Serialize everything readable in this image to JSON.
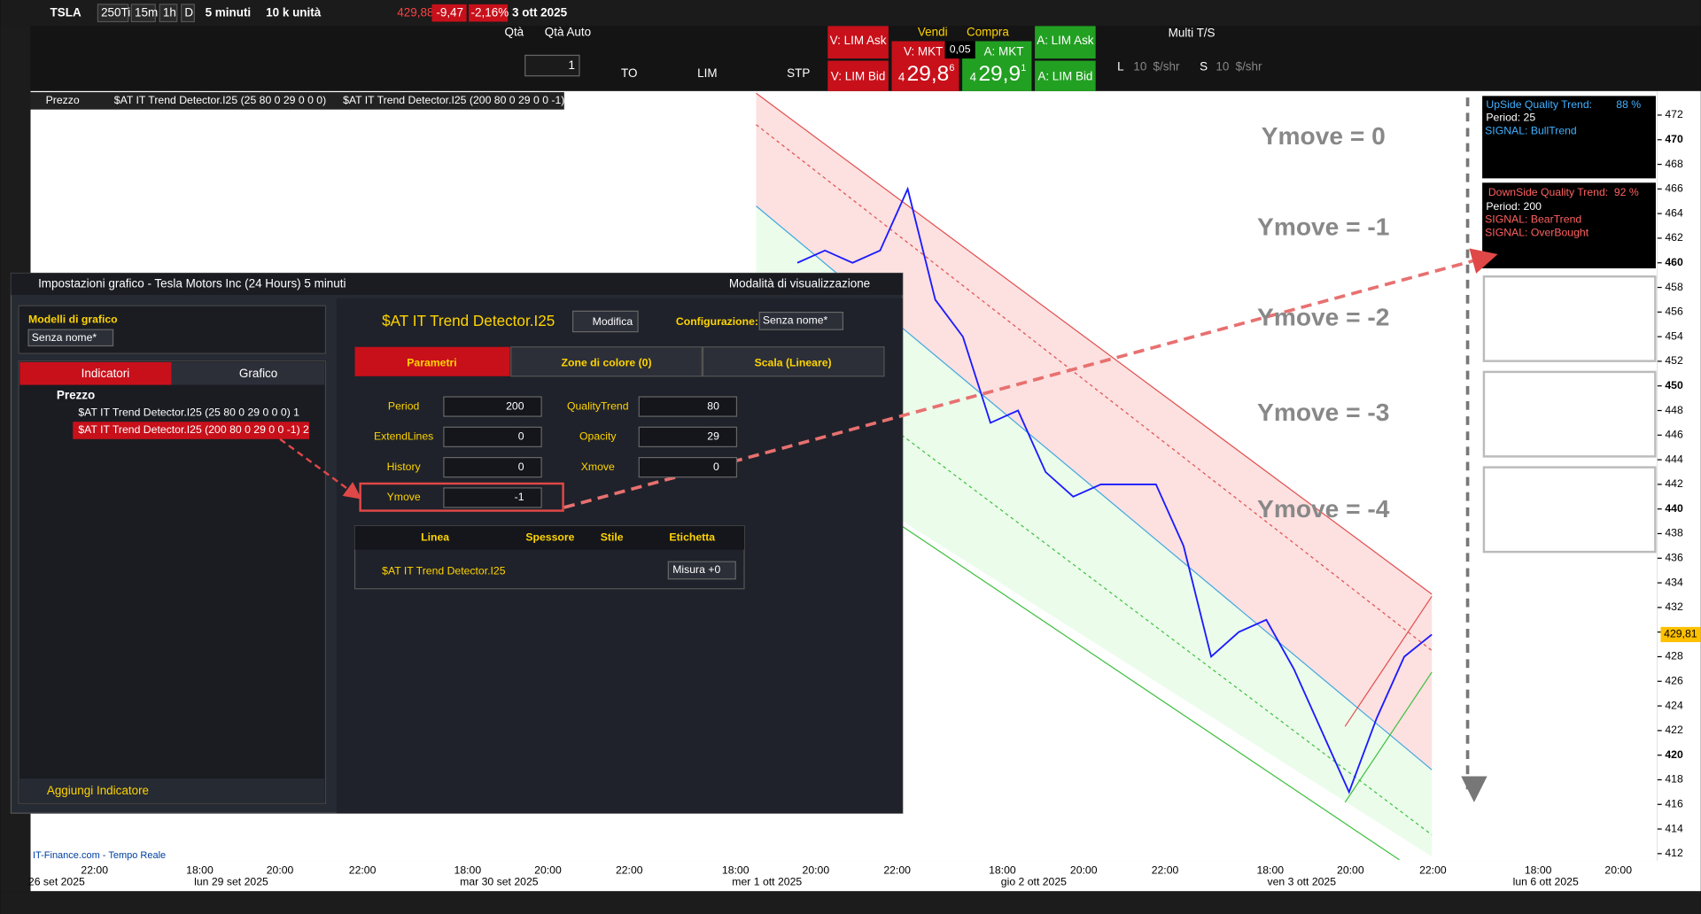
{
  "toolbar": {
    "symbol": "TSLA",
    "buttons": [
      "250Ti",
      "15m",
      "1h",
      "D"
    ],
    "interval": "5 minuti",
    "units": "10 k unità",
    "last": "429,88",
    "change": "-9,47",
    "change_pct": "-2,16%",
    "date": "3 ott 2025",
    "qta": "Qtà",
    "qta_auto": "Qtà Auto",
    "qty_value": "1",
    "to": "TO",
    "lim": "LIM",
    "stp": "STP",
    "v_lim_ask": "V: LIM Ask",
    "v_lim_bid": "V: LIM Bid",
    "vendi": "Vendi",
    "compra": "Compra",
    "v_mkt": "V: MKT",
    "a_mkt": "A: MKT",
    "spread": "0,05",
    "bid_small": "4",
    "bid_big": "29,8",
    "bid_sup": "6",
    "ask_small": "4",
    "ask_big": "29,9",
    "ask_sup": "1",
    "a_lim_ask": "A: LIM Ask",
    "a_lim_bid": "A: LIM Bid",
    "multi": "Multi T/S",
    "l": "L",
    "s": "S",
    "l_qty": "10",
    "s_qty": "10",
    "shr": "$/shr"
  },
  "legend": [
    "Prezzo",
    "$AT IT Trend Detector.I25 (25 80 0 29 0 0 0)",
    "$AT IT Trend Detector.I25 (200 80 0 29 0 0 -1)"
  ],
  "dialog": {
    "title": "Impostazioni grafico - Tesla Motors Inc (24 Hours) 5 minuti",
    "mode": "Modalità di visualizzazione",
    "models": "Modelli di grafico",
    "model_name": "Senza nome*",
    "tabs_left": [
      "Indicatori",
      "Grafico"
    ],
    "tree_root": "Prezzo",
    "tree_items": [
      "$AT IT Trend Detector.I25 (25 80 0 29 0 0 0) 1",
      "$AT IT Trend Detector.I25 (200 80 0 29 0 0 -1) 2"
    ],
    "add_indicator": "Aggiungi Indicatore",
    "indicator": "$AT IT Trend Detector.I25",
    "edit": "Modifica",
    "config_label": "Configurazione:",
    "config_value": "Senza nome*",
    "tabs_right": [
      "Parametri",
      "Zone di colore (0)",
      "Scala (Lineare)"
    ],
    "params_left": [
      {
        "label": "Period",
        "value": "200"
      },
      {
        "label": "ExtendLines",
        "value": "0"
      },
      {
        "label": "History",
        "value": "0"
      },
      {
        "label": "Ymove",
        "value": "-1"
      }
    ],
    "params_right": [
      {
        "label": "QualityTrend",
        "value": "80"
      },
      {
        "label": "Opacity",
        "value": "29"
      },
      {
        "label": "Xmove",
        "value": "0"
      }
    ],
    "table_headers": [
      "Linea",
      "Spessore",
      "Stile",
      "Etichetta"
    ],
    "table_row": "$AT IT Trend Detector.I25",
    "label_option": "Misura +0"
  },
  "annotations": [
    "Ymove = 0",
    "Ymove = -1",
    "Ymove = -2",
    "Ymove = -3",
    "Ymove = -4"
  ],
  "info_up": {
    "title": "UpSide Quality Trend:",
    "pct": "88 %",
    "period": "Period:  25",
    "signal": "SIGNAL: BullTrend"
  },
  "info_down": {
    "title": "DownSide Quality Trend:",
    "pct": "92 %",
    "period": "Period:  200",
    "signals": [
      "SIGNAL: BearTrend",
      "SIGNAL: OverBought"
    ]
  },
  "chart_data": {
    "type": "line",
    "color": "#1a1aff",
    "values": [
      460,
      461,
      460,
      461,
      466,
      457,
      454,
      447,
      448,
      443,
      441,
      442,
      442,
      442,
      437,
      428,
      430,
      431,
      427,
      422,
      417,
      423,
      428,
      429.8
    ],
    "ylim": [
      411.5,
      473.6
    ],
    "yticks": [
      412,
      414,
      416,
      418,
      420,
      422,
      424,
      426,
      428,
      430,
      432,
      434,
      436,
      438,
      440,
      442,
      444,
      446,
      448,
      450,
      452,
      454,
      456,
      458,
      460,
      462,
      464,
      466,
      468,
      470,
      472
    ],
    "last_label": "429,81",
    "time_labels": [
      "22:00",
      "18:00",
      "20:00",
      "22:00",
      "18:00",
      "20:00",
      "22:00",
      "18:00",
      "20:00",
      "22:00",
      "18:00",
      "20:00",
      "22:00",
      "18:00",
      "20:00",
      "22:00",
      "18:00",
      "20:00"
    ],
    "date_labels": [
      "26 set 2025",
      "lun 29 set 2025",
      "mar 30 set 2025",
      "mer 1 ott 2025",
      "gio 2 ott 2025",
      "ven 3 ott 2025",
      "lun 6 ott 2025"
    ]
  },
  "footer": "IT-Finance.com - Tempo Reale"
}
